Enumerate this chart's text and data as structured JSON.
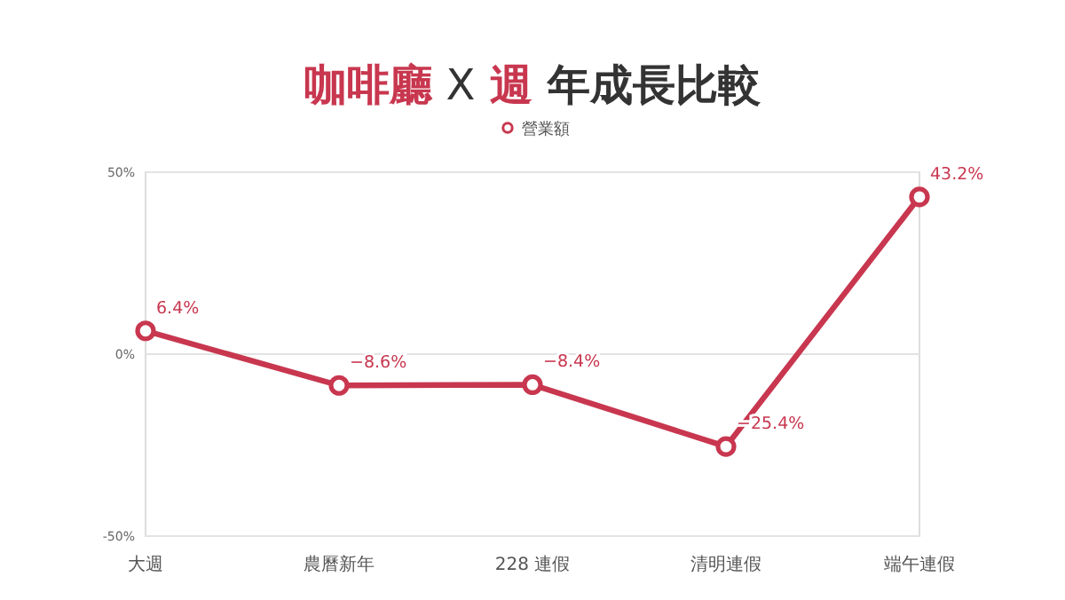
{
  "chart_data": {
    "type": "line",
    "title": "咖啡廳 X 週 年成長比較",
    "categories": [
      "大週",
      "農曆新年",
      "228 連假",
      "清明連假",
      "端午連假"
    ],
    "series": [
      {
        "name": "營業額",
        "color": "#c8374f",
        "values": [
          6.4,
          -8.6,
          -8.4,
          -25.4,
          43.2
        ],
        "value_labels": [
          "6.4%",
          "−8.6%",
          "−8.4%",
          "−25.4%",
          "43.2%"
        ]
      }
    ],
    "ylim": [
      -50,
      50
    ],
    "yticks": [
      {
        "value": -50,
        "label": "-50%"
      },
      {
        "value": 0,
        "label": "0%"
      },
      {
        "value": 50,
        "label": "50%"
      }
    ],
    "grid": "y",
    "legend": "top",
    "marker": "circle",
    "line_style": "solid"
  }
}
